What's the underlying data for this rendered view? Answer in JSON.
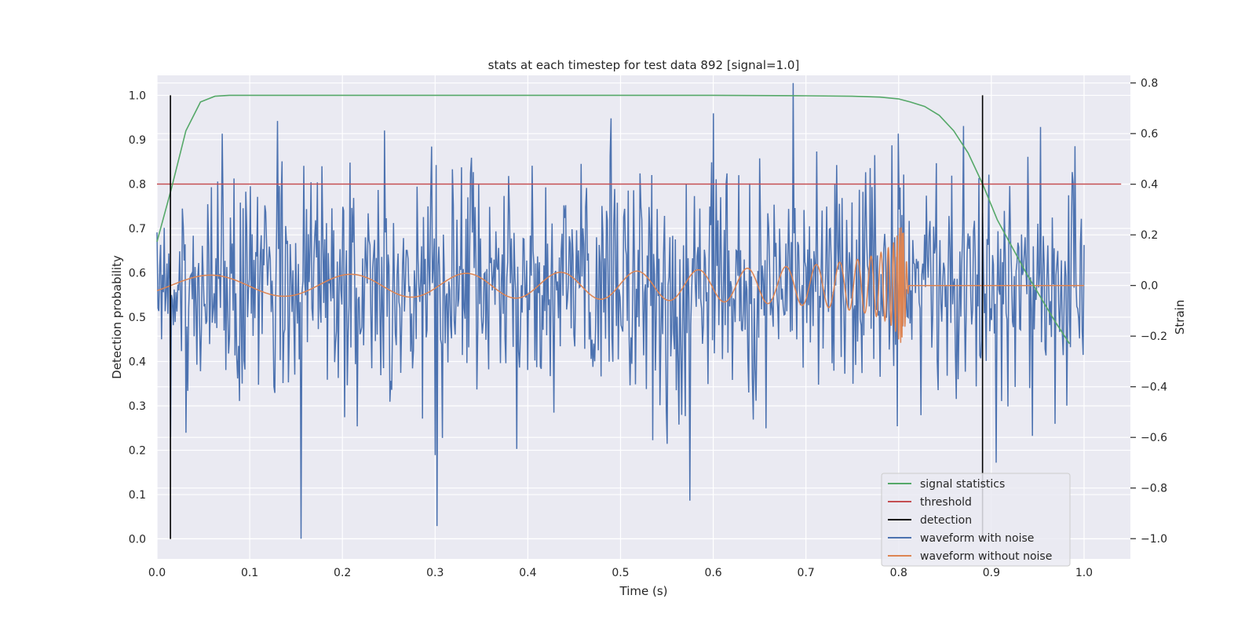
{
  "chart_data": {
    "type": "line",
    "title": "stats at each timestep for test data 892 [signal=1.0]",
    "xlabel": "Time (s)",
    "ylabel": "Detection probability",
    "y2label": "Strain",
    "xlim": [
      0.0,
      1.05
    ],
    "ylim": [
      -0.045,
      1.045
    ],
    "y2lim": [
      -1.08,
      0.83
    ],
    "xticks": [
      "0.0",
      "0.1",
      "0.2",
      "0.3",
      "0.4",
      "0.5",
      "0.6",
      "0.7",
      "0.8",
      "0.9",
      "1.0"
    ],
    "yticks": [
      "0.0",
      "0.1",
      "0.2",
      "0.3",
      "0.4",
      "0.5",
      "0.6",
      "0.7",
      "0.8",
      "0.9",
      "1.0"
    ],
    "y2ticks": [
      "−1.0",
      "−0.8",
      "−0.6",
      "−0.4",
      "−0.2",
      "0.0",
      "0.2",
      "0.4",
      "0.6",
      "0.8"
    ],
    "grid": true,
    "legend_position": "lower-right",
    "colors": {
      "signal_statistics": "#55a868",
      "threshold": "#c44e52",
      "detection": "#000000",
      "waveform_with_noise": "#4c72b0",
      "waveform_without_noise": "#dd8452",
      "plot_background": "#eaeaf2",
      "grid": "#ffffff"
    },
    "series": [
      {
        "name": "signal statistics",
        "axis": "left",
        "x": [
          0.0,
          0.0156,
          0.0312,
          0.0469,
          0.0625,
          0.0781,
          0.1,
          0.2,
          0.3,
          0.4,
          0.5,
          0.6,
          0.7,
          0.75,
          0.78,
          0.8,
          0.8125,
          0.8281,
          0.8438,
          0.8594,
          0.875,
          0.8906,
          0.9063,
          0.9219,
          0.9375,
          0.9531,
          0.9688,
          0.9844
        ],
        "y": [
          0.67,
          0.79,
          0.92,
          0.985,
          0.998,
          1.0,
          1.0,
          1.0,
          1.0,
          1.0,
          1.0,
          1.0,
          0.999,
          0.998,
          0.996,
          0.992,
          0.985,
          0.975,
          0.955,
          0.92,
          0.87,
          0.8,
          0.72,
          0.66,
          0.6,
          0.545,
          0.49,
          0.44
        ]
      },
      {
        "name": "threshold",
        "axis": "left",
        "x": [
          0.0,
          1.04
        ],
        "y": [
          0.8,
          0.8
        ]
      },
      {
        "name": "detection",
        "axis": "left",
        "segments": [
          {
            "x": 0.0145,
            "y": [
              0.0,
              1.0
            ]
          },
          {
            "x": 0.8905,
            "y": [
              0.0,
              1.0
            ]
          }
        ]
      },
      {
        "name": "waveform with noise",
        "axis": "right",
        "x_range": [
          0.0,
          1.0
        ],
        "n_points": 1024,
        "std": 0.22,
        "extremes": [
          {
            "x": 0.0,
            "y": 0.21
          },
          {
            "x": 0.0145,
            "y": -0.6
          },
          {
            "x": 0.07,
            "y": 0.6
          },
          {
            "x": 0.13,
            "y": 0.65
          },
          {
            "x": 0.155,
            "y": -1.0
          },
          {
            "x": 0.3,
            "y": -0.67
          },
          {
            "x": 0.302,
            "y": -0.95
          },
          {
            "x": 0.49,
            "y": 0.66
          },
          {
            "x": 0.6,
            "y": 0.68
          },
          {
            "x": 0.575,
            "y": -0.85
          },
          {
            "x": 0.686,
            "y": 0.8
          },
          {
            "x": 0.8,
            "y": 0.6
          },
          {
            "x": 0.87,
            "y": 0.63
          },
          {
            "x": 0.905,
            "y": -0.7
          },
          {
            "x": 0.99,
            "y": 0.55
          },
          {
            "x": 1.0,
            "y": 0.16
          }
        ]
      },
      {
        "name": "waveform without noise",
        "axis": "right",
        "x_range": [
          0.0,
          1.0
        ],
        "description": "chirp",
        "base_amplitude": 0.04,
        "peak_amplitude": 0.23,
        "merger_time": 0.805,
        "after_merger": 0.0
      }
    ]
  },
  "legend": {
    "items": [
      {
        "label": "signal statistics",
        "color": "#55a868"
      },
      {
        "label": "threshold",
        "color": "#c44e52"
      },
      {
        "label": "detection",
        "color": "#000000"
      },
      {
        "label": "waveform with noise",
        "color": "#4c72b0"
      },
      {
        "label": "waveform without noise",
        "color": "#dd8452"
      }
    ]
  }
}
